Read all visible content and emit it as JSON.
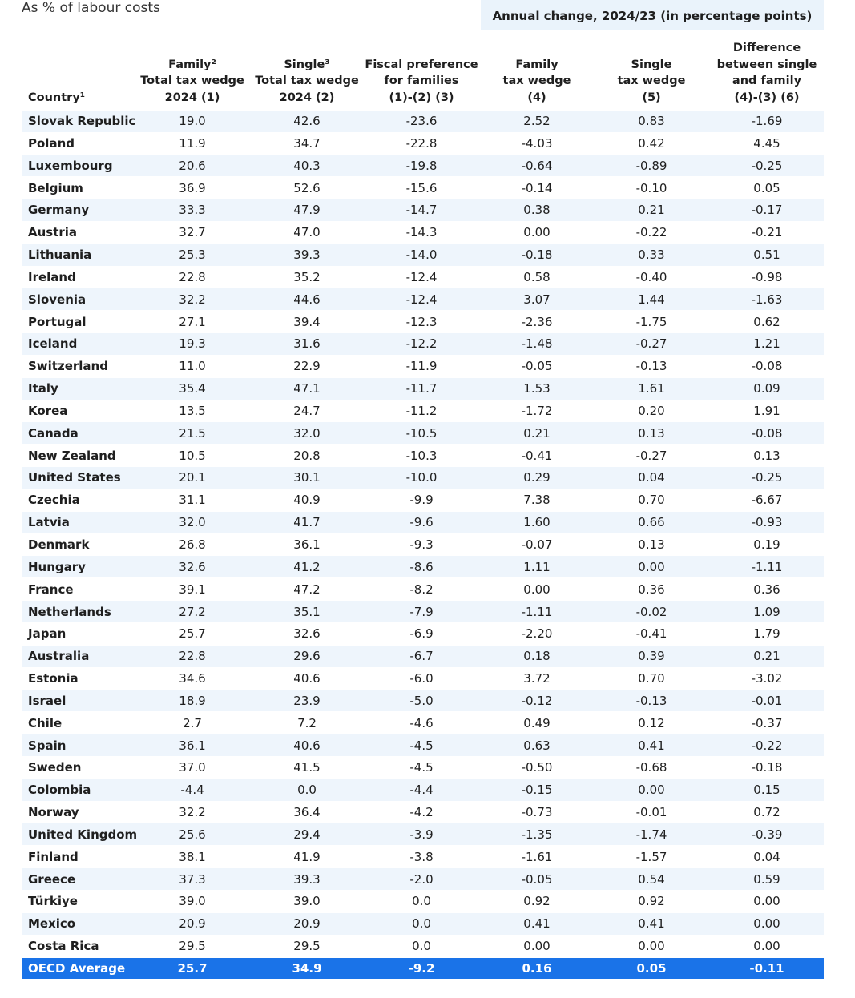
{
  "title": "As % of labour costs",
  "group_header": "Annual change, 2024/23 (in percentage points)",
  "columns": [
    [
      "Country¹"
    ],
    [
      "Family²",
      "Total tax wedge",
      "2024 (1)"
    ],
    [
      "Single³",
      "Total tax wedge",
      "2024 (2)"
    ],
    [
      "Fiscal preference",
      "for families",
      "(1)-(2) (3)"
    ],
    [
      "Family",
      "tax wedge",
      "(4)"
    ],
    [
      "Single",
      "tax wedge",
      "(5)"
    ],
    [
      "Difference",
      "between single",
      "and family",
      "(4)-(3) (6)"
    ]
  ],
  "rows": [
    [
      "Slovak Republic",
      "19.0",
      "42.6",
      "-23.6",
      "2.52",
      "0.83",
      "-1.69"
    ],
    [
      "Poland",
      "11.9",
      "34.7",
      "-22.8",
      "-4.03",
      "0.42",
      "4.45"
    ],
    [
      "Luxembourg",
      "20.6",
      "40.3",
      "-19.8",
      "-0.64",
      "-0.89",
      "-0.25"
    ],
    [
      "Belgium",
      "36.9",
      "52.6",
      "-15.6",
      "-0.14",
      "-0.10",
      "0.05"
    ],
    [
      "Germany",
      "33.3",
      "47.9",
      "-14.7",
      "0.38",
      "0.21",
      "-0.17"
    ],
    [
      "Austria",
      "32.7",
      "47.0",
      "-14.3",
      "0.00",
      "-0.22",
      "-0.21"
    ],
    [
      "Lithuania",
      "25.3",
      "39.3",
      "-14.0",
      "-0.18",
      "0.33",
      "0.51"
    ],
    [
      "Ireland",
      "22.8",
      "35.2",
      "-12.4",
      "0.58",
      "-0.40",
      "-0.98"
    ],
    [
      "Slovenia",
      "32.2",
      "44.6",
      "-12.4",
      "3.07",
      "1.44",
      "-1.63"
    ],
    [
      "Portugal",
      "27.1",
      "39.4",
      "-12.3",
      "-2.36",
      "-1.75",
      "0.62"
    ],
    [
      "Iceland",
      "19.3",
      "31.6",
      "-12.2",
      "-1.48",
      "-0.27",
      "1.21"
    ],
    [
      "Switzerland",
      "11.0",
      "22.9",
      "-11.9",
      "-0.05",
      "-0.13",
      "-0.08"
    ],
    [
      "Italy",
      "35.4",
      "47.1",
      "-11.7",
      "1.53",
      "1.61",
      "0.09"
    ],
    [
      "Korea",
      "13.5",
      "24.7",
      "-11.2",
      "-1.72",
      "0.20",
      "1.91"
    ],
    [
      "Canada",
      "21.5",
      "32.0",
      "-10.5",
      "0.21",
      "0.13",
      "-0.08"
    ],
    [
      "New Zealand",
      "10.5",
      "20.8",
      "-10.3",
      "-0.41",
      "-0.27",
      "0.13"
    ],
    [
      "United States",
      "20.1",
      "30.1",
      "-10.0",
      "0.29",
      "0.04",
      "-0.25"
    ],
    [
      "Czechia",
      "31.1",
      "40.9",
      "-9.9",
      "7.38",
      "0.70",
      "-6.67"
    ],
    [
      "Latvia",
      "32.0",
      "41.7",
      "-9.6",
      "1.60",
      "0.66",
      "-0.93"
    ],
    [
      "Denmark",
      "26.8",
      "36.1",
      "-9.3",
      "-0.07",
      "0.13",
      "0.19"
    ],
    [
      "Hungary",
      "32.6",
      "41.2",
      "-8.6",
      "1.11",
      "0.00",
      "-1.11"
    ],
    [
      "France",
      "39.1",
      "47.2",
      "-8.2",
      "0.00",
      "0.36",
      "0.36"
    ],
    [
      "Netherlands",
      "27.2",
      "35.1",
      "-7.9",
      "-1.11",
      "-0.02",
      "1.09"
    ],
    [
      "Japan",
      "25.7",
      "32.6",
      "-6.9",
      "-2.20",
      "-0.41",
      "1.79"
    ],
    [
      "Australia",
      "22.8",
      "29.6",
      "-6.7",
      "0.18",
      "0.39",
      "0.21"
    ],
    [
      "Estonia",
      "34.6",
      "40.6",
      "-6.0",
      "3.72",
      "0.70",
      "-3.02"
    ],
    [
      "Israel",
      "18.9",
      "23.9",
      "-5.0",
      "-0.12",
      "-0.13",
      "-0.01"
    ],
    [
      "Chile",
      "2.7",
      "7.2",
      "-4.6",
      "0.49",
      "0.12",
      "-0.37"
    ],
    [
      "Spain",
      "36.1",
      "40.6",
      "-4.5",
      "0.63",
      "0.41",
      "-0.22"
    ],
    [
      "Sweden",
      "37.0",
      "41.5",
      "-4.5",
      "-0.50",
      "-0.68",
      "-0.18"
    ],
    [
      "Colombia",
      "-4.4",
      "0.0",
      "-4.4",
      "-0.15",
      "0.00",
      "0.15"
    ],
    [
      "Norway",
      "32.2",
      "36.4",
      "-4.2",
      "-0.73",
      "-0.01",
      "0.72"
    ],
    [
      "United Kingdom",
      "25.6",
      "29.4",
      "-3.9",
      "-1.35",
      "-1.74",
      "-0.39"
    ],
    [
      "Finland",
      "38.1",
      "41.9",
      "-3.8",
      "-1.61",
      "-1.57",
      "0.04"
    ],
    [
      "Greece",
      "37.3",
      "39.3",
      "-2.0",
      "-0.05",
      "0.54",
      "0.59"
    ],
    [
      "Türkiye",
      "39.0",
      "39.0",
      "0.0",
      "0.92",
      "0.92",
      "0.00"
    ],
    [
      "Mexico",
      "20.9",
      "20.9",
      "0.0",
      "0.41",
      "0.41",
      "0.00"
    ],
    [
      "Costa Rica",
      "29.5",
      "29.5",
      "0.0",
      "0.00",
      "0.00",
      "0.00"
    ]
  ],
  "average": [
    "OECD Average",
    "25.7",
    "34.9",
    "-9.2",
    "0.16",
    "0.05",
    "-0.11"
  ]
}
